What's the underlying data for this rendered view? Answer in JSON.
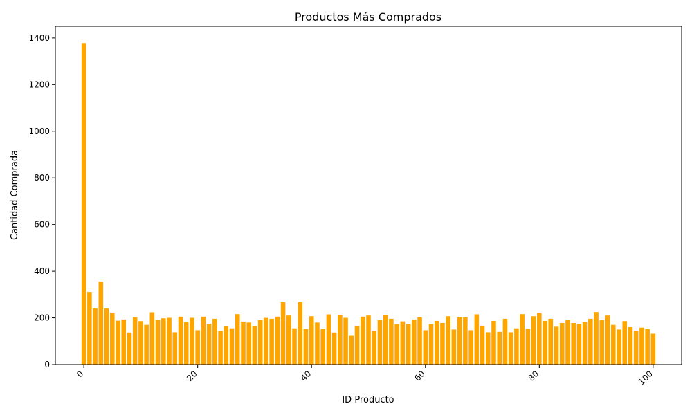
{
  "chart_data": {
    "type": "bar",
    "title": "Productos Más Comprados",
    "xlabel": "ID Producto",
    "ylabel": "Cantidad Comprada",
    "bar_color": "#ffa500",
    "xlim": [
      -5,
      105
    ],
    "ylim": [
      0,
      1450
    ],
    "x_ticks": [
      0,
      20,
      40,
      60,
      80,
      100
    ],
    "x_tick_labels": [
      "0",
      "20",
      "40",
      "60",
      "80",
      "100"
    ],
    "y_ticks": [
      0,
      200,
      400,
      600,
      800,
      1000,
      1200,
      1400
    ],
    "y_tick_labels": [
      "0",
      "200",
      "400",
      "600",
      "800",
      "1000",
      "1200",
      "1400"
    ],
    "x_tick_rotation": 45,
    "grid": false,
    "x": [
      0,
      1,
      2,
      3,
      4,
      5,
      6,
      7,
      8,
      9,
      10,
      11,
      12,
      13,
      14,
      15,
      16,
      17,
      18,
      19,
      20,
      21,
      22,
      23,
      24,
      25,
      26,
      27,
      28,
      29,
      30,
      31,
      32,
      33,
      34,
      35,
      36,
      37,
      38,
      39,
      40,
      41,
      42,
      43,
      44,
      45,
      46,
      47,
      48,
      49,
      50,
      51,
      52,
      53,
      54,
      55,
      56,
      57,
      58,
      59,
      60,
      61,
      62,
      63,
      64,
      65,
      66,
      67,
      68,
      69,
      70,
      71,
      72,
      73,
      74,
      75,
      76,
      77,
      78,
      79,
      80,
      81,
      82,
      83,
      84,
      85,
      86,
      87,
      88,
      89,
      90,
      91,
      92,
      93,
      94,
      95,
      96,
      97,
      98,
      99,
      100
    ],
    "values": [
      1378,
      311,
      240,
      356,
      240,
      222,
      188,
      193,
      137,
      202,
      186,
      170,
      224,
      190,
      198,
      200,
      138,
      205,
      181,
      200,
      147,
      205,
      175,
      196,
      144,
      163,
      155,
      216,
      184,
      180,
      164,
      190,
      200,
      196,
      205,
      267,
      210,
      155,
      267,
      152,
      207,
      180,
      152,
      215,
      137,
      213,
      200,
      123,
      165,
      205,
      210,
      145,
      190,
      213,
      196,
      173,
      185,
      173,
      193,
      202,
      147,
      173,
      187,
      178,
      207,
      150,
      202,
      202,
      147,
      215,
      165,
      138,
      187,
      140,
      196,
      138,
      155,
      216,
      153,
      207,
      222,
      187,
      196,
      162,
      178,
      190,
      178,
      175,
      182,
      196,
      225,
      190,
      210,
      170,
      150,
      186,
      160,
      145,
      158,
      152,
      132
    ]
  }
}
